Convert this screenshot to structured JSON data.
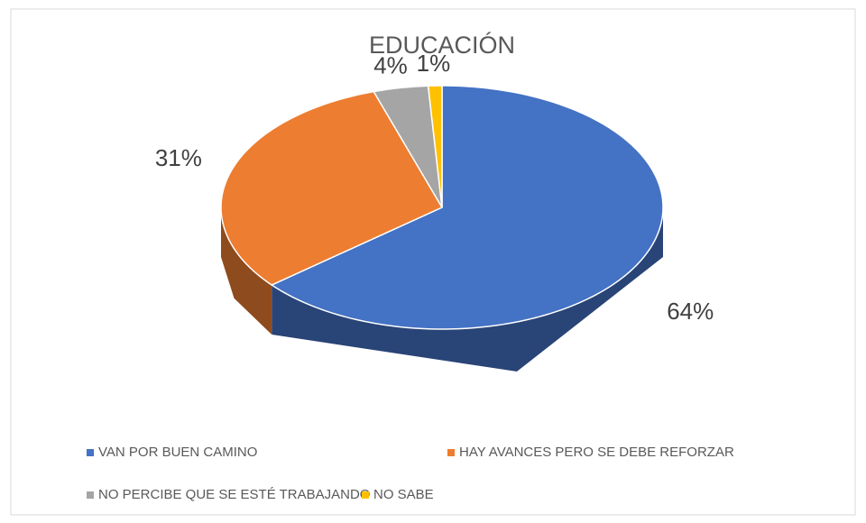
{
  "chart_data": {
    "type": "pie",
    "title": "EDUCACIÓN",
    "categories": [
      "VAN POR BUEN CAMINO",
      "HAY AVANCES PERO SE DEBE REFORZAR",
      "NO PERCIBE QUE SE ESTÉ TRABAJANDO",
      "NO SABE"
    ],
    "values": [
      64,
      31,
      4,
      1
    ],
    "value_labels": [
      "64%",
      "31%",
      "4%",
      "1%"
    ],
    "colors": [
      "#4472c4",
      "#ed7d31",
      "#a5a5a5",
      "#ffc000"
    ],
    "legend": "bottom"
  }
}
